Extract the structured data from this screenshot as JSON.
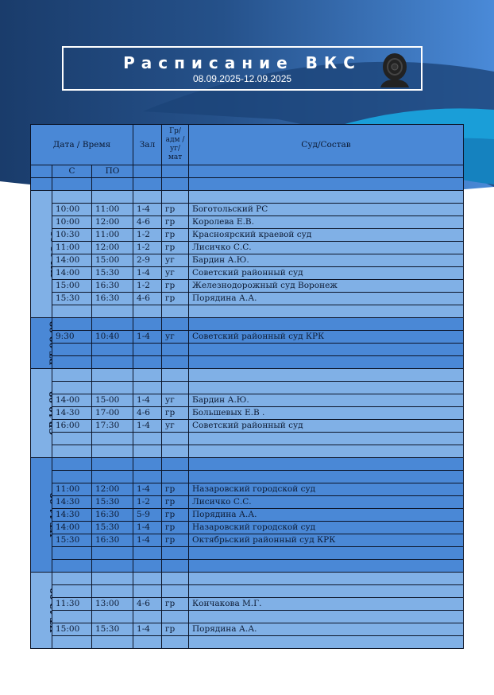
{
  "header": {
    "title": "Расписание ВКС",
    "period": "08.09.2025-12.09.2025",
    "icon": "webcam-icon"
  },
  "colors": {
    "header": "#4a88d6",
    "light_row": "#80b0e6",
    "dark_row": "#4a88d6",
    "navy": "#1b3d6d"
  },
  "table": {
    "columns": {
      "datetime": "Дата / Время",
      "hall": "Зал",
      "type": "Гр/ адм /уг/ мат",
      "court": "Суд/Состав",
      "from": "С",
      "to": "ПО"
    },
    "days": [
      {
        "label": "ПН 08.09",
        "shade": "light",
        "rows": [
          null,
          [
            "10:00",
            "11:00",
            "1-4",
            "гр",
            "Боготольский РС"
          ],
          [
            "10:00",
            "12:00",
            "4-6",
            "гр",
            "Королева Е.В."
          ],
          [
            "10:30",
            "11:00",
            "1-2",
            "гр",
            "Красноярский краевой суд"
          ],
          [
            "11:00",
            "12:00",
            "1-2",
            "гр",
            "Лисичко С.С."
          ],
          [
            "14:00",
            "15:00",
            "2-9",
            "уг",
            "Бардин А.Ю."
          ],
          [
            "14:00",
            "15:30",
            "1-4",
            "уг",
            "Советский районный суд"
          ],
          [
            "15:00",
            "16:30",
            "1-2",
            "гр",
            "Железнодорожный суд Воронеж"
          ],
          [
            "15:30",
            "16:30",
            "4-6",
            "гр",
            "Порядина А.А."
          ],
          null
        ]
      },
      {
        "label": "ВТ 09.09",
        "shade": "dark",
        "rows": [
          null,
          [
            "9:30",
            "10:40",
            "1-4",
            "уг",
            "Советский районный суд КРК"
          ],
          null,
          null
        ]
      },
      {
        "label": "СР 10.09",
        "shade": "light",
        "rows": [
          null,
          null,
          [
            "14-00",
            "15-00",
            "1-4",
            "уг",
            "Бардин А.Ю."
          ],
          [
            "14-30",
            "17-00",
            "4-6",
            "гр",
            "Большевых Е.В ."
          ],
          [
            "16:00",
            "17:30",
            "1-4",
            "уг",
            "Советский районный суд"
          ],
          null,
          null
        ]
      },
      {
        "label": "ЧТ 11.09",
        "shade": "dark",
        "rows": [
          null,
          null,
          [
            "11:00",
            "12:00",
            "1-4",
            "гр",
            "Назаровский городской суд"
          ],
          [
            "14:30",
            "15:30",
            "1-2",
            "гр",
            "Лисичко С.С."
          ],
          [
            "14:30",
            "16:30",
            "5-9",
            "гр",
            "Порядина  А.А."
          ],
          [
            "14:00",
            "15:30",
            "1-4",
            "гр",
            "Назаровский городской суд"
          ],
          [
            "15:30",
            "16:30",
            "1-4",
            "гр",
            "Октябрьский районный суд КРК"
          ],
          null,
          null
        ]
      },
      {
        "label": "ПТ 12.09",
        "shade": "light",
        "rows": [
          null,
          null,
          [
            "11:30",
            "13:00",
            "4-6",
            "гр",
            "Кончакова М.Г."
          ],
          null,
          [
            "15:00",
            "15:30",
            "1-4",
            "гр",
            "Порядина А.А."
          ],
          null
        ]
      }
    ]
  }
}
